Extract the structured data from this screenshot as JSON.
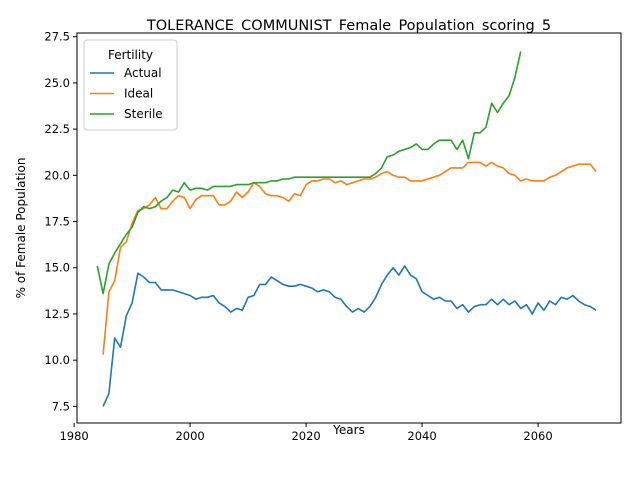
{
  "chart_data": {
    "type": "line",
    "title": "TOLERANCE_COMMUNIST_Female_Population_scoring_5",
    "xlabel": "Years",
    "ylabel": "% of Female Population",
    "xlim": [
      1980.5,
      2074.3
    ],
    "ylim": [
      6.6,
      27.7
    ],
    "xticks": [
      1980,
      2000,
      2020,
      2040,
      2060
    ],
    "yticks": [
      7.5,
      10.0,
      12.5,
      15.0,
      17.5,
      20.0,
      22.5,
      25.0,
      27.5
    ],
    "xtick_labels": [
      "1980",
      "2000",
      "2020",
      "2040",
      "2060"
    ],
    "ytick_labels": [
      "7.5",
      "10.0",
      "12.5",
      "15.0",
      "17.5",
      "20.0",
      "22.5",
      "25.0",
      "27.5"
    ],
    "grid": false,
    "legend": {
      "title": "Fertility",
      "placement": "top-left"
    },
    "series": [
      {
        "name": "Actual",
        "color": "#1f77b4",
        "x": [
          1985,
          1986,
          1987,
          1988,
          1989,
          1990,
          1991,
          1992,
          1993,
          1994,
          1995,
          1996,
          1997,
          1998,
          1999,
          2000,
          2001,
          2002,
          2003,
          2004,
          2005,
          2006,
          2007,
          2008,
          2009,
          2010,
          2011,
          2012,
          2013,
          2014,
          2015,
          2016,
          2017,
          2018,
          2019,
          2020,
          2021,
          2022,
          2023,
          2024,
          2025,
          2026,
          2027,
          2028,
          2029,
          2030,
          2031,
          2032,
          2033,
          2034,
          2035,
          2036,
          2037,
          2038,
          2039,
          2040,
          2041,
          2042,
          2043,
          2044,
          2045,
          2046,
          2047,
          2048,
          2049,
          2050,
          2051,
          2052,
          2053,
          2054,
          2055,
          2056,
          2057,
          2058,
          2059,
          2060,
          2061,
          2062,
          2063,
          2064,
          2065,
          2066,
          2067,
          2068,
          2069,
          2070
        ],
        "y": [
          7.5,
          8.2,
          11.2,
          10.7,
          12.4,
          13.1,
          14.7,
          14.5,
          14.2,
          14.2,
          13.8,
          13.8,
          13.8,
          13.7,
          13.6,
          13.5,
          13.3,
          13.4,
          13.4,
          13.5,
          13.1,
          12.9,
          12.6,
          12.8,
          12.7,
          13.4,
          13.5,
          14.1,
          14.1,
          14.5,
          14.3,
          14.1,
          14.0,
          14.0,
          14.1,
          14.0,
          13.9,
          13.7,
          13.8,
          13.7,
          13.4,
          13.3,
          12.9,
          12.6,
          12.8,
          12.6,
          12.9,
          13.4,
          14.1,
          14.6,
          15.0,
          14.6,
          15.1,
          14.6,
          14.4,
          13.7,
          13.5,
          13.3,
          13.4,
          13.2,
          13.2,
          12.8,
          13.0,
          12.6,
          12.9,
          13.0,
          13.0,
          13.3,
          13.0,
          13.3,
          13.0,
          13.2,
          12.8,
          13.0,
          12.5,
          13.1,
          12.7,
          13.2,
          13.0,
          13.4,
          13.3,
          13.5,
          13.2,
          13.0,
          12.9,
          12.7
        ]
      },
      {
        "name": "Ideal",
        "color": "#ff7f0e",
        "x": [
          1985,
          1986,
          1987,
          1988,
          1989,
          1990,
          1991,
          1992,
          1993,
          1994,
          1995,
          1996,
          1997,
          1998,
          1999,
          2000,
          2001,
          2002,
          2003,
          2004,
          2005,
          2006,
          2007,
          2008,
          2009,
          2010,
          2011,
          2012,
          2013,
          2014,
          2015,
          2016,
          2017,
          2018,
          2019,
          2020,
          2021,
          2022,
          2023,
          2024,
          2025,
          2026,
          2027,
          2028,
          2029,
          2030,
          2031,
          2032,
          2033,
          2034,
          2035,
          2036,
          2037,
          2038,
          2039,
          2040,
          2041,
          2042,
          2043,
          2044,
          2045,
          2046,
          2047,
          2048,
          2049,
          2050,
          2051,
          2052,
          2053,
          2054,
          2055,
          2056,
          2057,
          2058,
          2059,
          2060,
          2061,
          2062,
          2063,
          2064,
          2065,
          2066,
          2067,
          2068,
          2069,
          2070
        ],
        "y": [
          10.3,
          13.7,
          14.3,
          16.1,
          16.4,
          17.4,
          18.1,
          18.2,
          18.4,
          18.8,
          18.2,
          18.2,
          18.6,
          18.9,
          18.8,
          18.2,
          18.7,
          18.9,
          18.9,
          18.9,
          18.4,
          18.4,
          18.6,
          19.1,
          18.8,
          19.1,
          19.6,
          19.4,
          19.0,
          18.9,
          18.9,
          18.8,
          18.6,
          19.0,
          18.9,
          19.5,
          19.7,
          19.7,
          19.8,
          19.8,
          19.6,
          19.7,
          19.5,
          19.6,
          19.7,
          19.8,
          19.8,
          19.9,
          20.1,
          20.2,
          20.0,
          19.9,
          19.9,
          19.7,
          19.7,
          19.7,
          19.8,
          19.9,
          20.0,
          20.2,
          20.4,
          20.4,
          20.4,
          20.7,
          20.7,
          20.7,
          20.5,
          20.7,
          20.5,
          20.4,
          20.1,
          20.0,
          19.7,
          19.8,
          19.7,
          19.7,
          19.7,
          19.9,
          20.0,
          20.2,
          20.4,
          20.5,
          20.6,
          20.6,
          20.6,
          20.2
        ]
      },
      {
        "name": "Sterile",
        "color": "#2ca02c",
        "x": [
          1984,
          1985,
          1986,
          1987,
          1988,
          1989,
          1990,
          1991,
          1992,
          1993,
          1994,
          1995,
          1996,
          1997,
          1998,
          1999,
          2000,
          2001,
          2002,
          2003,
          2004,
          2005,
          2006,
          2007,
          2008,
          2009,
          2010,
          2011,
          2012,
          2013,
          2014,
          2015,
          2016,
          2017,
          2018,
          2019,
          2020,
          2021,
          2022,
          2023,
          2024,
          2025,
          2026,
          2027,
          2028,
          2029,
          2030,
          2031,
          2032,
          2033,
          2034,
          2035,
          2036,
          2037,
          2038,
          2039,
          2040,
          2041,
          2042,
          2043,
          2044,
          2045,
          2046,
          2047,
          2048,
          2049,
          2050,
          2051,
          2052,
          2053,
          2054,
          2055,
          2056,
          2057
        ],
        "y": [
          15.1,
          13.6,
          15.2,
          15.8,
          16.3,
          16.8,
          17.2,
          18.0,
          18.3,
          18.2,
          18.3,
          18.6,
          18.8,
          19.2,
          19.1,
          19.6,
          19.2,
          19.3,
          19.3,
          19.2,
          19.4,
          19.4,
          19.4,
          19.4,
          19.5,
          19.5,
          19.5,
          19.6,
          19.6,
          19.6,
          19.7,
          19.7,
          19.8,
          19.8,
          19.9,
          19.9,
          19.9,
          19.9,
          19.9,
          19.9,
          19.9,
          19.9,
          19.9,
          19.9,
          19.9,
          19.9,
          19.9,
          19.9,
          20.1,
          20.4,
          21.0,
          21.1,
          21.3,
          21.4,
          21.5,
          21.7,
          21.4,
          21.4,
          21.7,
          21.9,
          21.9,
          21.9,
          21.4,
          21.9,
          20.9,
          22.3,
          22.3,
          22.6,
          23.9,
          23.4,
          23.9,
          24.3,
          25.3,
          26.7
        ]
      }
    ]
  }
}
